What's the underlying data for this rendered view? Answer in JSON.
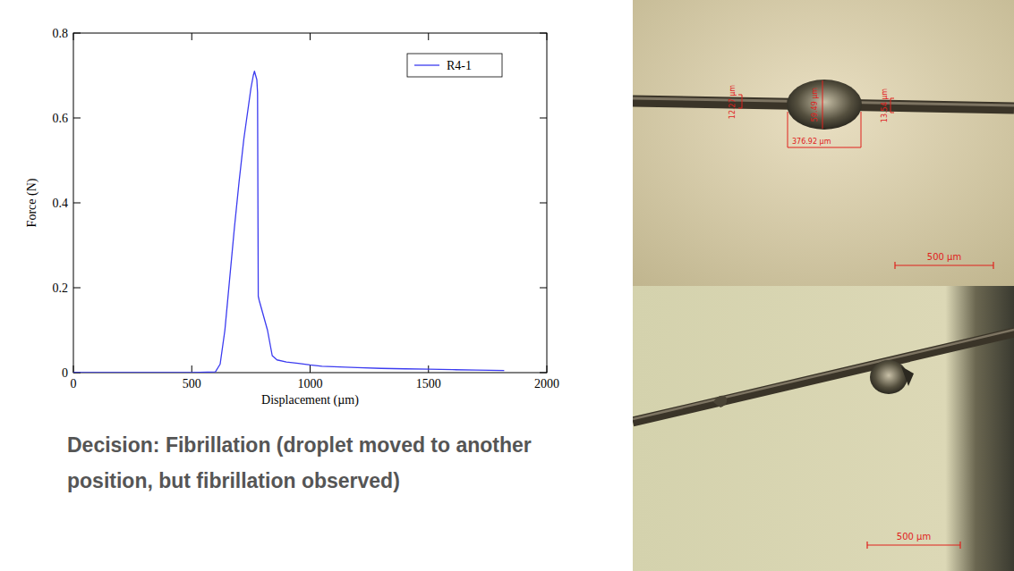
{
  "chart_data": {
    "type": "line",
    "x_label": "Displacement (µm)",
    "y_label": "Force (N)",
    "x": [
      0,
      100,
      200,
      300,
      400,
      500,
      600,
      620,
      640,
      660,
      680,
      700,
      720,
      740,
      750,
      760,
      765,
      770,
      775,
      778,
      781,
      785,
      800,
      820,
      840,
      860,
      900,
      950,
      1000,
      1050,
      1100,
      1200,
      1300,
      1400,
      1500,
      1600,
      1700,
      1820
    ],
    "series": [
      {
        "name": "R4-1",
        "color": "#3b3bf0",
        "values": [
          0,
          0,
          0,
          0,
          0,
          0,
          0.002,
          0.02,
          0.1,
          0.22,
          0.34,
          0.45,
          0.55,
          0.63,
          0.67,
          0.7,
          0.71,
          0.7,
          0.69,
          0.66,
          0.18,
          0.17,
          0.14,
          0.1,
          0.04,
          0.03,
          0.025,
          0.022,
          0.018,
          0.015,
          0.014,
          0.012,
          0.01,
          0.009,
          0.008,
          0.007,
          0.006,
          0.005
        ]
      }
    ],
    "xlim": [
      0,
      2000
    ],
    "ylim": [
      0,
      0.8
    ],
    "xticks": [
      0,
      500,
      1000,
      1500,
      2000
    ],
    "yticks": [
      0,
      0.2,
      0.4,
      0.6,
      0.8
    ],
    "legend": "upper right",
    "grid": false
  },
  "caption": {
    "text": "Decision: Fibrillation (droplet moved to another position, but fibrillation observed)"
  },
  "micrographs": [
    {
      "scale_bar": "500 µm",
      "measurements": [
        "12.27 µm",
        "59.49 µm",
        "376.92 µm",
        "13.54 µm"
      ]
    },
    {
      "scale_bar": "500 µm"
    }
  ]
}
